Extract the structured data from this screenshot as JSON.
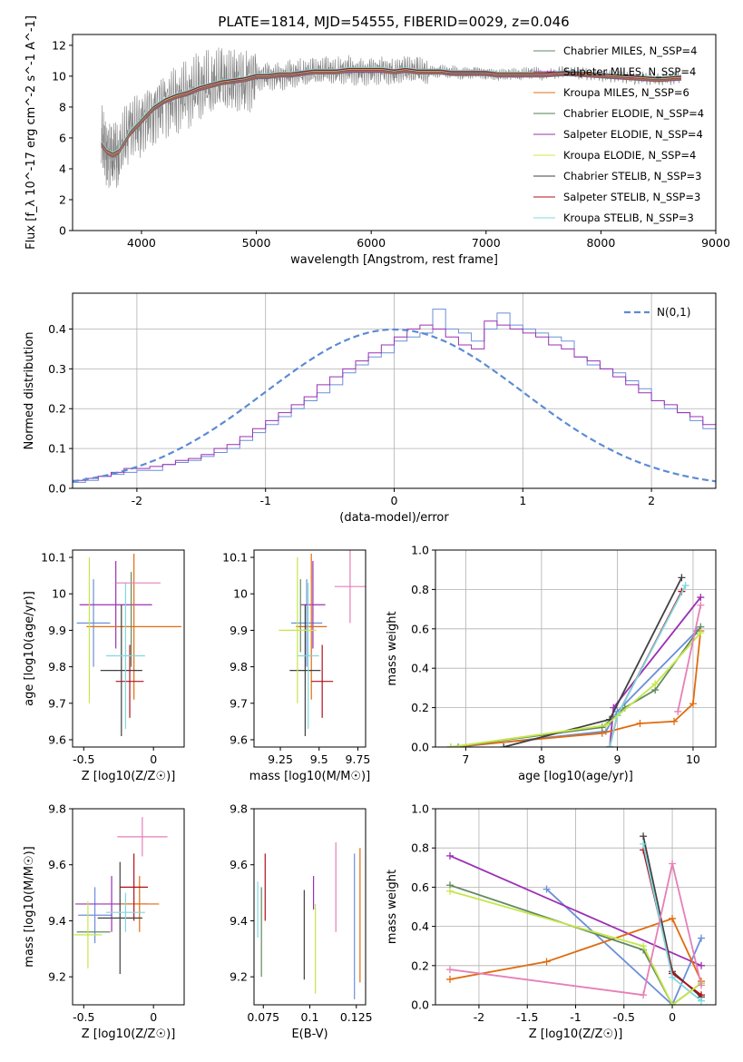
{
  "figure": {
    "title": "PLATE=1814, MJD=54555, FIBERID=0029, z=0.046"
  },
  "legend_models": [
    {
      "label": "Chabrier MILES, N_SSP=4",
      "color": "#5f8a5f"
    },
    {
      "label": "Salpeter MILES, N_SSP=4",
      "color": "#9b30b4"
    },
    {
      "label": "Kroupa MILES, N_SSP=6",
      "color": "#e06c10"
    },
    {
      "label": "Chabrier ELODIE, N_SSP=4",
      "color": "#4f7f4f"
    },
    {
      "label": "Salpeter ELODIE, N_SSP=4",
      "color": "#9b30b4"
    },
    {
      "label": "Kroupa ELODIE, N_SSP=4",
      "color": "#d6e64a"
    },
    {
      "label": "Chabrier STELIB, N_SSP=3",
      "color": "#404040"
    },
    {
      "label": "Salpeter STELIB, N_SSP=3",
      "color": "#b0101a"
    },
    {
      "label": "Kroupa STELIB, N_SSP=3",
      "color": "#7fd8e0"
    }
  ],
  "series_colors": [
    "#6b8fd8",
    "#9b30b4",
    "#e06c10",
    "#5f8a5f",
    "#404040",
    "#b0101a",
    "#7fd8e0",
    "#c6e64a",
    "#e67fb8"
  ],
  "chart_data": [
    {
      "id": "spectrum",
      "type": "line",
      "xlabel": "wavelength [Angstrom, rest frame]",
      "ylabel": "Flux [f_λ 10^-17 erg cm^-2 s^-1 A^-1]",
      "xlim": [
        3400,
        9000
      ],
      "ylim": [
        0,
        12.7
      ],
      "xticks": [
        4000,
        5000,
        6000,
        7000,
        8000,
        9000
      ],
      "yticks": [
        0,
        2,
        4,
        6,
        8,
        10,
        12
      ],
      "grid": false,
      "legend_position": "top-right",
      "observed": {
        "color": "#7f7f7f",
        "x": [
          3650,
          3700,
          3750,
          3800,
          3900,
          4000,
          4100,
          4200,
          4300,
          4400,
          4500,
          4600,
          4700,
          4800,
          4900,
          5000,
          5100,
          5200,
          5300,
          5400,
          5500,
          5600,
          5700,
          5800,
          5900,
          6000,
          6100,
          6200,
          6300,
          6400,
          6500,
          6600,
          6700,
          6800,
          6900,
          7000,
          7100,
          7200,
          7300,
          7400,
          7500,
          7700,
          7900,
          8100,
          8300,
          8500,
          8700
        ],
        "y": [
          5.8,
          5.2,
          4.8,
          5.0,
          6.5,
          7.0,
          7.8,
          8.3,
          8.6,
          8.8,
          9.2,
          9.4,
          9.6,
          9.6,
          9.8,
          10.0,
          10.1,
          10.0,
          10.1,
          10.2,
          10.2,
          10.3,
          10.3,
          10.4,
          10.3,
          10.4,
          10.4,
          10.3,
          10.4,
          10.3,
          10.2,
          10.3,
          10.3,
          10.2,
          10.3,
          10.2,
          10.1,
          10.1,
          10.1,
          10.2,
          10.1,
          10.3,
          10.1,
          10.0,
          9.9,
          9.8,
          9.9
        ]
      },
      "model": {
        "color": "#7fd8e0",
        "x": [
          3650,
          3700,
          3750,
          3800,
          3900,
          4000,
          4100,
          4200,
          4300,
          4400,
          4500,
          4600,
          4700,
          4800,
          4900,
          5000,
          5100,
          5200,
          5300,
          5400,
          5500,
          5600,
          5700,
          5800,
          5900,
          6000,
          6100,
          6200,
          6300,
          6400,
          6500,
          6600,
          6700,
          6800,
          6900,
          7000,
          7100,
          7200,
          7300,
          7400,
          7500,
          7700,
          7900,
          8100,
          8300,
          8500,
          8700
        ],
        "y": [
          5.6,
          5.1,
          4.9,
          5.1,
          6.3,
          7.1,
          7.9,
          8.4,
          8.7,
          8.9,
          9.2,
          9.4,
          9.6,
          9.7,
          9.8,
          10.0,
          10.0,
          10.1,
          10.1,
          10.2,
          10.3,
          10.3,
          10.3,
          10.4,
          10.4,
          10.4,
          10.4,
          10.3,
          10.4,
          10.3,
          10.3,
          10.3,
          10.2,
          10.2,
          10.2,
          10.2,
          10.1,
          10.1,
          10.1,
          10.1,
          10.1,
          10.2,
          10.1,
          10.0,
          9.9,
          9.8,
          9.9
        ]
      }
    },
    {
      "id": "residuals",
      "type": "histogram",
      "xlabel": "(data-model)/error",
      "ylabel": "Normed distribution",
      "xlim": [
        -2.5,
        2.5
      ],
      "ylim": [
        0,
        0.49
      ],
      "xticks": [
        -2,
        -1,
        0,
        1,
        2
      ],
      "yticks": [
        0.0,
        0.1,
        0.2,
        0.3,
        0.4
      ],
      "grid": true,
      "legend_position": "top-right",
      "legend_label": "N(0,1)",
      "gaussian": {
        "mean": 0,
        "sigma": 1,
        "color": "#5b8bd4"
      },
      "bin_width": 0.1,
      "bin_start": -2.5,
      "histograms": [
        [
          0.015,
          0.02,
          0.03,
          0.035,
          0.04,
          0.045,
          0.045,
          0.06,
          0.065,
          0.07,
          0.08,
          0.09,
          0.1,
          0.12,
          0.14,
          0.16,
          0.18,
          0.2,
          0.22,
          0.24,
          0.26,
          0.29,
          0.31,
          0.33,
          0.34,
          0.37,
          0.38,
          0.39,
          0.45,
          0.4,
          0.39,
          0.37,
          0.4,
          0.44,
          0.41,
          0.4,
          0.39,
          0.38,
          0.37,
          0.33,
          0.31,
          0.3,
          0.29,
          0.27,
          0.25,
          0.22,
          0.2,
          0.19,
          0.17,
          0.15
        ],
        [
          0.02,
          0.025,
          0.03,
          0.04,
          0.05,
          0.05,
          0.055,
          0.06,
          0.07,
          0.075,
          0.085,
          0.1,
          0.11,
          0.13,
          0.15,
          0.17,
          0.19,
          0.21,
          0.23,
          0.26,
          0.28,
          0.3,
          0.32,
          0.34,
          0.36,
          0.38,
          0.4,
          0.41,
          0.4,
          0.38,
          0.36,
          0.35,
          0.42,
          0.41,
          0.4,
          0.39,
          0.38,
          0.36,
          0.35,
          0.33,
          0.32,
          0.3,
          0.28,
          0.26,
          0.24,
          0.22,
          0.21,
          0.19,
          0.18,
          0.16
        ]
      ]
    },
    {
      "id": "age-vs-z",
      "type": "errorbar",
      "xlabel": "Z [log10(Z/Z☉)]",
      "ylabel": "age [log10(age/yr)]",
      "xlim": [
        -0.58,
        0.22
      ],
      "ylim": [
        9.58,
        10.12
      ],
      "xticks": [
        -0.5,
        0.0
      ],
      "yticks": [
        9.6,
        9.7,
        9.8,
        9.9,
        10.0,
        10.1
      ],
      "points": [
        {
          "x": -0.43,
          "y": 9.92,
          "xerr": 0.12,
          "yerr": 0.12
        },
        {
          "x": -0.27,
          "y": 9.97,
          "xerr": 0.26,
          "yerr": 0.12
        },
        {
          "x": -0.14,
          "y": 9.91,
          "xerr": 0.34,
          "yerr": 0.2
        },
        {
          "x": -0.16,
          "y": 9.93,
          "xerr": 0.0,
          "yerr": 0.13
        },
        {
          "x": -0.23,
          "y": 9.79,
          "xerr": 0.15,
          "yerr": 0.18
        },
        {
          "x": -0.17,
          "y": 9.76,
          "xerr": 0.1,
          "yerr": 0.1
        },
        {
          "x": -0.2,
          "y": 9.83,
          "xerr": 0.14,
          "yerr": 0.2
        },
        {
          "x": -0.46,
          "y": 9.9,
          "xerr": 0.0,
          "yerr": 0.2
        },
        {
          "x": -0.11,
          "y": 10.03,
          "xerr": 0.16,
          "yerr": 0.0
        }
      ]
    },
    {
      "id": "age-vs-mass",
      "type": "errorbar",
      "xlabel": "mass [log10(M/M☉)]",
      "ylabel": "",
      "xlim": [
        9.08,
        9.8
      ],
      "ylim": [
        9.58,
        10.12
      ],
      "xticks": [
        9.25,
        9.5,
        9.75
      ],
      "yticks": [
        9.6,
        9.7,
        9.8,
        9.9,
        10.0,
        10.1
      ],
      "points": [
        {
          "x": 9.42,
          "y": 9.92,
          "xerr": 0.1,
          "yerr": 0.12
        },
        {
          "x": 9.46,
          "y": 9.97,
          "xerr": 0.08,
          "yerr": 0.12
        },
        {
          "x": 9.45,
          "y": 9.91,
          "xerr": 0.1,
          "yerr": 0.2
        },
        {
          "x": 9.38,
          "y": 9.94,
          "xerr": 0.0,
          "yerr": 0.1
        },
        {
          "x": 9.41,
          "y": 9.79,
          "xerr": 0.1,
          "yerr": 0.18
        },
        {
          "x": 9.52,
          "y": 9.76,
          "xerr": 0.07,
          "yerr": 0.1
        },
        {
          "x": 9.43,
          "y": 9.83,
          "xerr": 0.07,
          "yerr": 0.2
        },
        {
          "x": 9.36,
          "y": 9.9,
          "xerr": 0.12,
          "yerr": 0.2
        },
        {
          "x": 9.7,
          "y": 10.02,
          "xerr": 0.1,
          "yerr": 0.1
        }
      ]
    },
    {
      "id": "mass-weight-vs-age",
      "type": "line",
      "xlabel": "age [log10(age/yr)]",
      "ylabel": "mass weight",
      "xlim": [
        6.6,
        10.3
      ],
      "ylim": [
        0,
        1.0
      ],
      "xticks": [
        7,
        8,
        9,
        10
      ],
      "yticks": [
        0.0,
        0.2,
        0.4,
        0.6,
        0.8,
        1.0
      ],
      "grid": true,
      "series": [
        {
          "x": [
            6.9,
            8.85,
            9.0,
            10.05
          ],
          "y": [
            0.0,
            0.08,
            0.18,
            0.59
          ]
        },
        {
          "x": [
            8.9,
            8.95,
            10.1
          ],
          "y": [
            0.0,
            0.2,
            0.76
          ]
        },
        {
          "x": [
            6.8,
            8.8,
            9.3,
            9.75,
            10.0,
            10.1
          ],
          "y": [
            0.0,
            0.07,
            0.12,
            0.13,
            0.22,
            0.59
          ]
        },
        {
          "x": [
            6.8,
            8.8,
            9.1,
            9.5,
            10.1
          ],
          "y": [
            0.0,
            0.1,
            0.2,
            0.29,
            0.61
          ]
        },
        {
          "x": [
            7.5,
            8.9,
            9.85
          ],
          "y": [
            0.0,
            0.14,
            0.86
          ]
        },
        {
          "x": [
            8.9,
            9.0,
            9.85
          ],
          "y": [
            0.0,
            0.16,
            0.79
          ]
        },
        {
          "x": [
            8.9,
            9.0,
            9.9
          ],
          "y": [
            0.0,
            0.16,
            0.82
          ]
        },
        {
          "x": [
            6.8,
            8.85,
            9.5,
            10.1
          ],
          "y": [
            0.0,
            0.11,
            0.32,
            0.58
          ]
        },
        {
          "x": [
            9.8,
            10.1
          ],
          "y": [
            0.18,
            0.72
          ]
        }
      ]
    },
    {
      "id": "mass-vs-z",
      "type": "errorbar",
      "xlabel": "Z [log10(Z/Z☉)]",
      "ylabel": "mass [log10(M/M☉)]",
      "xlim": [
        -0.58,
        0.22
      ],
      "ylim": [
        9.1,
        9.8
      ],
      "xticks": [
        -0.5,
        0.0
      ],
      "yticks": [
        9.2,
        9.4,
        9.6,
        9.8
      ],
      "points": [
        {
          "x": -0.42,
          "y": 9.42,
          "xerr": 0.12,
          "yerr": 0.1
        },
        {
          "x": -0.3,
          "y": 9.46,
          "xerr": 0.26,
          "yerr": 0.1
        },
        {
          "x": -0.1,
          "y": 9.46,
          "xerr": 0.14,
          "yerr": 0.1
        },
        {
          "x": -0.43,
          "y": 9.36,
          "xerr": 0.12,
          "yerr": 0.0
        },
        {
          "x": -0.24,
          "y": 9.41,
          "xerr": 0.16,
          "yerr": 0.2
        },
        {
          "x": -0.14,
          "y": 9.52,
          "xerr": 0.1,
          "yerr": 0.12
        },
        {
          "x": -0.2,
          "y": 9.43,
          "xerr": 0.14,
          "yerr": 0.07
        },
        {
          "x": -0.47,
          "y": 9.35,
          "xerr": 0.1,
          "yerr": 0.12
        },
        {
          "x": -0.08,
          "y": 9.7,
          "xerr": 0.18,
          "yerr": 0.07
        }
      ]
    },
    {
      "id": "mass-vs-ebv",
      "type": "errorbar",
      "xlabel": "E(B-V)",
      "ylabel": "",
      "xlim": [
        0.07,
        0.13
      ],
      "ylim": [
        9.1,
        9.8
      ],
      "xticks": [
        0.075,
        0.1,
        0.125
      ],
      "yticks": [
        9.2,
        9.4,
        9.6,
        9.8
      ],
      "points": [
        {
          "x": 0.124,
          "y": 9.38,
          "xerr": 0.0,
          "yerr": 0.26
        },
        {
          "x": 0.102,
          "y": 9.5,
          "xerr": 0.0,
          "yerr": 0.06
        },
        {
          "x": 0.127,
          "y": 9.42,
          "xerr": 0.0,
          "yerr": 0.24
        },
        {
          "x": 0.074,
          "y": 9.36,
          "xerr": 0.0,
          "yerr": 0.16
        },
        {
          "x": 0.097,
          "y": 9.35,
          "xerr": 0.0,
          "yerr": 0.16
        },
        {
          "x": 0.076,
          "y": 9.52,
          "xerr": 0.0,
          "yerr": 0.12
        },
        {
          "x": 0.072,
          "y": 9.44,
          "xerr": 0.0,
          "yerr": 0.1
        },
        {
          "x": 0.103,
          "y": 9.3,
          "xerr": 0.0,
          "yerr": 0.16
        },
        {
          "x": 0.114,
          "y": 9.52,
          "xerr": 0.0,
          "yerr": 0.16
        }
      ]
    },
    {
      "id": "mass-weight-vs-z",
      "type": "line",
      "xlabel": "Z [log10(Z/Z☉)]",
      "ylabel": "mass weight",
      "xlim": [
        -2.45,
        0.45
      ],
      "ylim": [
        0,
        1.0
      ],
      "xticks": [
        -2.0,
        -1.5,
        -1.0,
        -0.5,
        0.0
      ],
      "yticks": [
        0.0,
        0.2,
        0.4,
        0.6,
        0.8,
        1.0
      ],
      "grid": true,
      "series": [
        {
          "x": [
            -1.3,
            0.0,
            0.3
          ],
          "y": [
            0.59,
            0.0,
            0.34
          ]
        },
        {
          "x": [
            -2.3,
            0.3
          ],
          "y": [
            0.76,
            0.2
          ]
        },
        {
          "x": [
            -2.3,
            -1.3,
            0.0,
            0.3
          ],
          "y": [
            0.13,
            0.22,
            0.44,
            0.12
          ]
        },
        {
          "x": [
            -2.3,
            -0.3,
            0.0,
            0.3
          ],
          "y": [
            0.61,
            0.28,
            0.0,
            0.11
          ]
        },
        {
          "x": [
            -0.3,
            0.0,
            0.3
          ],
          "y": [
            0.86,
            0.17,
            0.04
          ]
        },
        {
          "x": [
            -0.3,
            0.0,
            0.3
          ],
          "y": [
            0.79,
            0.16,
            0.05
          ]
        },
        {
          "x": [
            -0.3,
            0.0,
            0.3
          ],
          "y": [
            0.82,
            0.14,
            0.02
          ]
        },
        {
          "x": [
            -2.3,
            -0.3,
            0.0,
            0.3
          ],
          "y": [
            0.58,
            0.3,
            0.0,
            0.11
          ]
        },
        {
          "x": [
            -2.3,
            -0.3,
            0.0,
            0.3
          ],
          "y": [
            0.18,
            0.05,
            0.72,
            0.1
          ]
        }
      ]
    }
  ]
}
